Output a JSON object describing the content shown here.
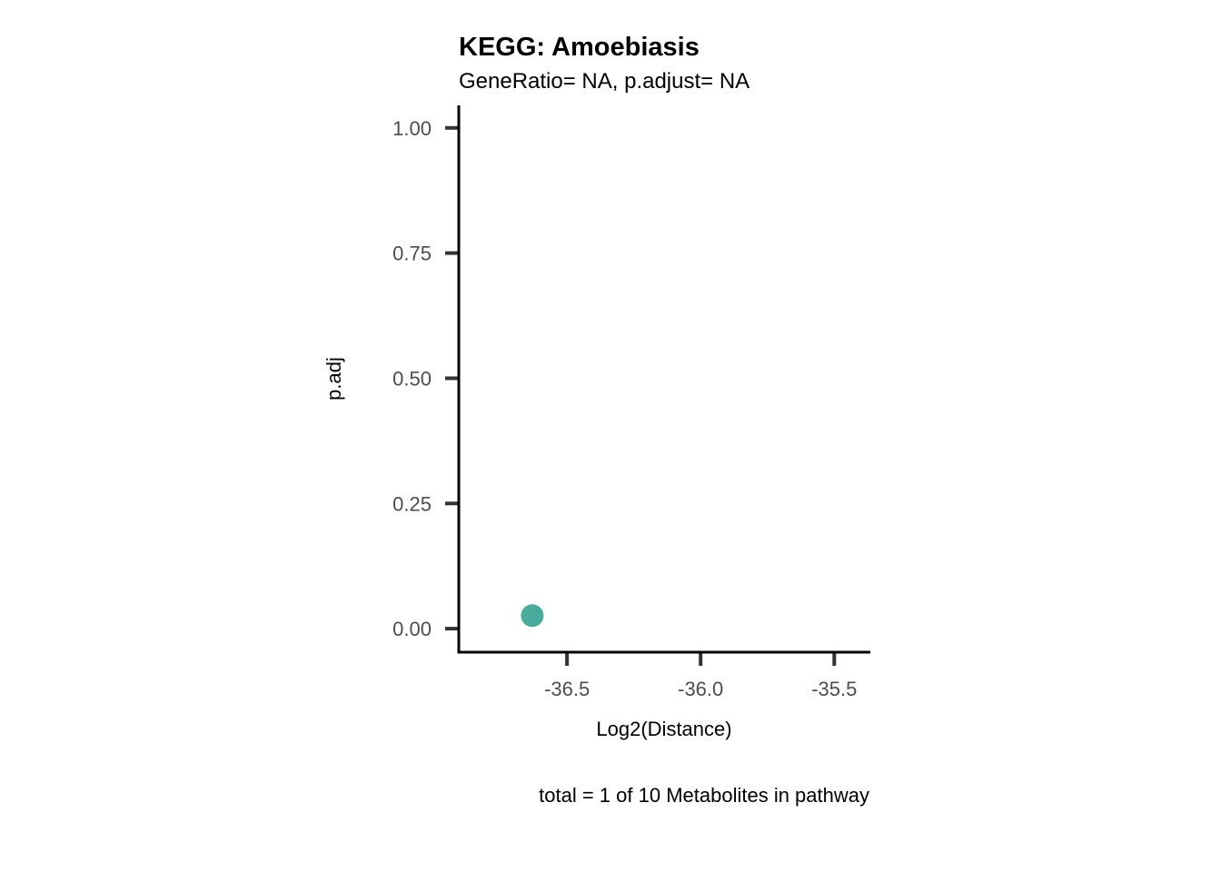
{
  "chart_data": {
    "type": "scatter",
    "title": "KEGG: Amoebiasis",
    "subtitle": "GeneRatio= NA, p.adjust= NA",
    "xlabel": "Log2(Distance)",
    "ylabel": "p.adj",
    "caption": "total = 1 of 10 Metabolites in pathway",
    "xlim": [
      -36.905,
      -35.365
    ],
    "ylim": [
      -0.047,
      1.045
    ],
    "x_ticks": [
      -36.5,
      -36.0,
      -35.5
    ],
    "x_tick_labels": [
      "-36.5",
      "-36.0",
      "-35.5"
    ],
    "y_ticks": [
      0.0,
      0.25,
      0.5,
      0.75,
      1.0
    ],
    "y_tick_labels": [
      "0.00",
      "0.25",
      "0.50",
      "0.75",
      "1.00"
    ],
    "grid": false,
    "legend": "none",
    "point_color": "#48ab9c",
    "points": [
      {
        "x": -36.63,
        "y": 0.026
      }
    ]
  }
}
